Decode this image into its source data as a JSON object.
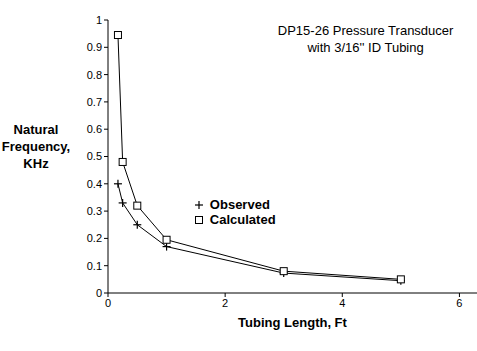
{
  "chart_data": {
    "type": "line",
    "title": [
      "DP15-26 Pressure Transducer",
      "with 3/16'' ID Tubing"
    ],
    "x_label": "Tubing Length, Ft",
    "y_label": [
      "Natural",
      "Frequency,",
      "KHz"
    ],
    "x": [
      0.17,
      0.25,
      0.5,
      1,
      3,
      5
    ],
    "series": [
      {
        "name": "Observed",
        "color": "#000000",
        "marker": "plus",
        "values": [
          0.4,
          0.33,
          0.25,
          0.17,
          0.073,
          0.045
        ]
      },
      {
        "name": "Calculated",
        "color": "#000000",
        "marker": "square",
        "values": [
          0.945,
          0.48,
          0.32,
          0.195,
          0.08,
          0.05
        ]
      }
    ],
    "xlim": [
      0,
      6.3
    ],
    "ylim": [
      0,
      1
    ],
    "xticks": [
      0,
      2,
      4,
      6
    ],
    "yticks": [
      0,
      0.1,
      0.2,
      0.3,
      0.4,
      0.5,
      0.6,
      0.7,
      0.8,
      0.9,
      1
    ],
    "grid": false,
    "legend": "center"
  }
}
